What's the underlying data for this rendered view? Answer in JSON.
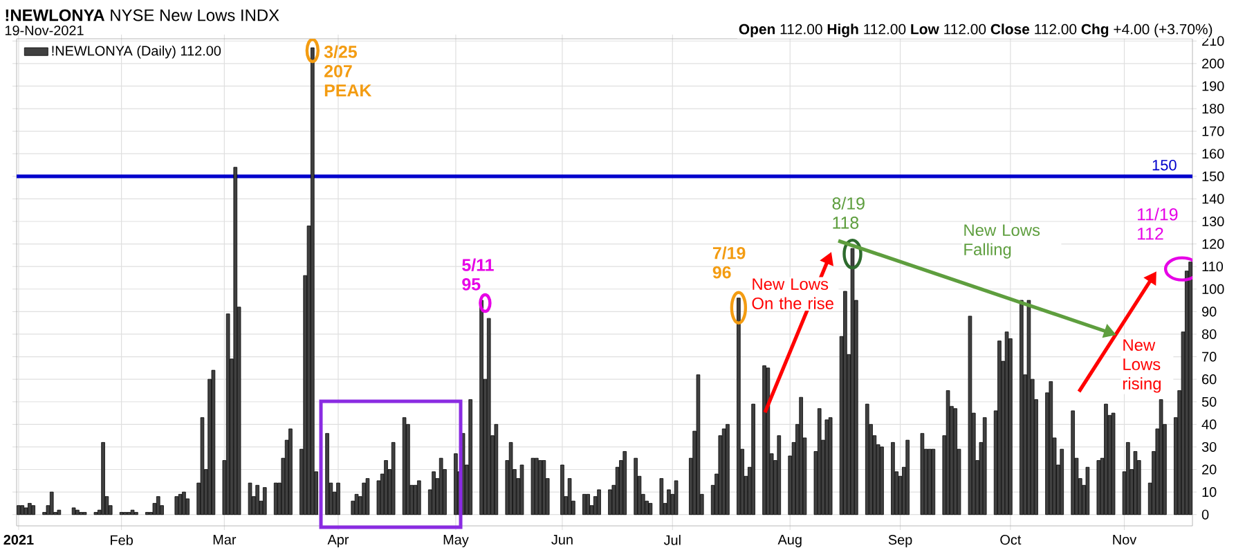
{
  "chart_data": {
    "type": "bar",
    "title": "**!NEWLONYA** NYSE New Lows INDX",
    "subtitle": "19-Nov-2021",
    "x": [
      "2021-01-04",
      "2021-01-05",
      "2021-01-06",
      "2021-01-07",
      "2021-01-08",
      "2021-01-11",
      "2021-01-12",
      "2021-01-13",
      "2021-01-14",
      "2021-01-15",
      "2021-01-19",
      "2021-01-20",
      "2021-01-21",
      "2021-01-22",
      "2021-01-25",
      "2021-01-26",
      "2021-01-27",
      "2021-01-28",
      "2021-01-29",
      "2021-02-01",
      "2021-02-02",
      "2021-02-03",
      "2021-02-04",
      "2021-02-05",
      "2021-02-08",
      "2021-02-09",
      "2021-02-10",
      "2021-02-11",
      "2021-02-12",
      "2021-02-16",
      "2021-02-17",
      "2021-02-18",
      "2021-02-19",
      "2021-02-22",
      "2021-02-23",
      "2021-02-24",
      "2021-02-25",
      "2021-02-26",
      "2021-03-01",
      "2021-03-02",
      "2021-03-03",
      "2021-03-04",
      "2021-03-05",
      "2021-03-08",
      "2021-03-09",
      "2021-03-10",
      "2021-03-11",
      "2021-03-12",
      "2021-03-15",
      "2021-03-16",
      "2021-03-17",
      "2021-03-18",
      "2021-03-19",
      "2021-03-22",
      "2021-03-23",
      "2021-03-24",
      "2021-03-25",
      "2021-03-26",
      "2021-03-29",
      "2021-03-30",
      "2021-03-31",
      "2021-04-01",
      "2021-04-05",
      "2021-04-06",
      "2021-04-07",
      "2021-04-08",
      "2021-04-09",
      "2021-04-12",
      "2021-04-13",
      "2021-04-14",
      "2021-04-15",
      "2021-04-16",
      "2021-04-19",
      "2021-04-20",
      "2021-04-21",
      "2021-04-22",
      "2021-04-23",
      "2021-04-26",
      "2021-04-27",
      "2021-04-28",
      "2021-04-29",
      "2021-04-30",
      "2021-05-03",
      "2021-05-04",
      "2021-05-05",
      "2021-05-06",
      "2021-05-07",
      "2021-05-10",
      "2021-05-11",
      "2021-05-12",
      "2021-05-13",
      "2021-05-14",
      "2021-05-17",
      "2021-05-18",
      "2021-05-19",
      "2021-05-20",
      "2021-05-21",
      "2021-05-24",
      "2021-05-25",
      "2021-05-26",
      "2021-05-27",
      "2021-05-28",
      "2021-06-01",
      "2021-06-02",
      "2021-06-03",
      "2021-06-04",
      "2021-06-07",
      "2021-06-08",
      "2021-06-09",
      "2021-06-10",
      "2021-06-11",
      "2021-06-14",
      "2021-06-15",
      "2021-06-16",
      "2021-06-17",
      "2021-06-18",
      "2021-06-21",
      "2021-06-22",
      "2021-06-23",
      "2021-06-24",
      "2021-06-25",
      "2021-06-28",
      "2021-06-29",
      "2021-06-30",
      "2021-07-01",
      "2021-07-02",
      "2021-07-06",
      "2021-07-07",
      "2021-07-08",
      "2021-07-09",
      "2021-07-12",
      "2021-07-13",
      "2021-07-14",
      "2021-07-15",
      "2021-07-16",
      "2021-07-19",
      "2021-07-20",
      "2021-07-21",
      "2021-07-22",
      "2021-07-23",
      "2021-07-26",
      "2021-07-27",
      "2021-07-28",
      "2021-07-29",
      "2021-07-30",
      "2021-08-02",
      "2021-08-03",
      "2021-08-04",
      "2021-08-05",
      "2021-08-06",
      "2021-08-09",
      "2021-08-10",
      "2021-08-11",
      "2021-08-12",
      "2021-08-13",
      "2021-08-16",
      "2021-08-17",
      "2021-08-18",
      "2021-08-19",
      "2021-08-20",
      "2021-08-23",
      "2021-08-24",
      "2021-08-25",
      "2021-08-26",
      "2021-08-27",
      "2021-08-30",
      "2021-08-31",
      "2021-09-01",
      "2021-09-02",
      "2021-09-03",
      "2021-09-07",
      "2021-09-08",
      "2021-09-09",
      "2021-09-10",
      "2021-09-13",
      "2021-09-14",
      "2021-09-15",
      "2021-09-16",
      "2021-09-17",
      "2021-09-20",
      "2021-09-21",
      "2021-09-22",
      "2021-09-23",
      "2021-09-24",
      "2021-09-27",
      "2021-09-28",
      "2021-09-29",
      "2021-09-30",
      "2021-10-01",
      "2021-10-04",
      "2021-10-05",
      "2021-10-06",
      "2021-10-07",
      "2021-10-08",
      "2021-10-11",
      "2021-10-12",
      "2021-10-13",
      "2021-10-14",
      "2021-10-15",
      "2021-10-18",
      "2021-10-19",
      "2021-10-20",
      "2021-10-21",
      "2021-10-22",
      "2021-10-25",
      "2021-10-26",
      "2021-10-27",
      "2021-10-28",
      "2021-10-29",
      "2021-11-01",
      "2021-11-02",
      "2021-11-03",
      "2021-11-04",
      "2021-11-05",
      "2021-11-08",
      "2021-11-09",
      "2021-11-10",
      "2021-11-11",
      "2021-11-12",
      "2021-11-15",
      "2021-11-16",
      "2021-11-17",
      "2021-11-18",
      "2021-11-19"
    ],
    "series": [
      {
        "name": "!NEWLONYA (Daily) 112.00",
        "color": "#404040",
        "values": [
          4,
          4,
          3,
          5,
          4,
          1,
          4,
          10,
          1,
          2,
          3,
          2,
          1,
          1,
          1,
          2,
          32,
          8,
          4,
          1,
          1,
          1,
          2,
          1,
          1,
          1,
          5,
          8,
          4,
          8,
          9,
          10,
          7,
          14,
          43,
          20,
          60,
          64,
          24,
          89,
          69,
          154,
          92,
          14,
          8,
          13,
          6,
          12,
          14,
          14,
          25,
          33,
          38,
          29,
          106,
          128,
          207,
          19,
          36,
          14,
          10,
          14,
          6,
          9,
          8,
          14,
          16,
          15,
          18,
          24,
          20,
          32,
          43,
          40,
          13,
          13,
          15,
          11,
          19,
          16,
          25,
          20,
          27,
          19,
          36,
          22,
          51,
          95,
          60,
          87,
          35,
          40,
          24,
          32,
          20,
          16,
          22,
          25,
          25,
          24,
          24,
          16,
          22,
          8,
          16,
          6,
          9,
          9,
          4,
          8,
          11,
          11,
          13,
          21,
          24,
          28,
          25,
          17,
          9,
          6,
          5,
          16,
          5,
          11,
          9,
          15,
          25,
          37,
          62,
          9,
          13,
          18,
          35,
          38,
          40,
          96,
          29,
          17,
          21,
          49,
          66,
          65,
          27,
          24,
          35,
          26,
          32,
          40,
          52,
          34,
          28,
          47,
          33,
          42,
          43,
          79,
          99,
          71,
          118,
          95,
          49,
          40,
          35,
          31,
          30,
          32,
          19,
          17,
          21,
          33,
          36,
          29,
          29,
          29,
          35,
          55,
          48,
          47,
          29,
          88,
          45,
          24,
          32,
          43,
          46,
          77,
          68,
          81,
          78,
          95,
          62,
          95,
          60,
          51,
          54,
          59,
          34,
          22,
          29,
          46,
          25,
          16,
          13,
          21,
          24,
          25,
          49,
          44,
          45,
          19,
          32,
          20,
          28,
          24,
          14,
          28,
          38,
          51,
          40,
          43,
          55,
          81,
          108,
          112
        ]
      }
    ],
    "xlim": [
      "2021-01-04",
      "2021-11-19"
    ],
    "xticks": [
      {
        "value": "2021-01-04",
        "label": "2021"
      },
      {
        "value": "2021-02-01",
        "label": "Feb"
      },
      {
        "value": "2021-03-01",
        "label": "Mar"
      },
      {
        "value": "2021-04-01",
        "label": "Apr"
      },
      {
        "value": "2021-05-03",
        "label": "May"
      },
      {
        "value": "2021-06-01",
        "label": "Jun"
      },
      {
        "value": "2021-07-01",
        "label": "Jul"
      },
      {
        "value": "2021-08-02",
        "label": "Aug"
      },
      {
        "value": "2021-09-01",
        "label": "Sep"
      },
      {
        "value": "2021-10-01",
        "label": "Oct"
      },
      {
        "value": "2021-11-01",
        "label": "Nov"
      }
    ],
    "ylim": [
      -5,
      211
    ],
    "yticks": [
      0,
      10,
      20,
      30,
      40,
      50,
      60,
      70,
      80,
      90,
      100,
      110,
      120,
      130,
      140,
      150,
      160,
      170,
      180,
      190,
      200,
      210
    ],
    "grid": true,
    "legend": "top left",
    "ref_lines": [
      {
        "axis": "y",
        "value": 150,
        "label": "150",
        "color": "#0000cc"
      }
    ],
    "annotations": [
      "**Open** 112.00 **High** 112.00 **Low** 112.00 **Close** 112.00 **Chg** +4.00 (+3.70%)",
      {
        "text": "3/25 207 PEAK",
        "x": "2021-03-25",
        "y": 207
      },
      {
        "text": "5/11 95",
        "x": "2021-05-11",
        "y": 95
      },
      {
        "text": "7/19 96",
        "x": "2021-07-19",
        "y": 96
      },
      {
        "text": "8/19 118",
        "x": "2021-08-19",
        "y": 118
      },
      {
        "text": "11/19 112",
        "x": "2021-11-19",
        "y": 112
      },
      "New Lows On the rise",
      "New Lows Falling",
      "New Lows rising"
    ]
  }
}
